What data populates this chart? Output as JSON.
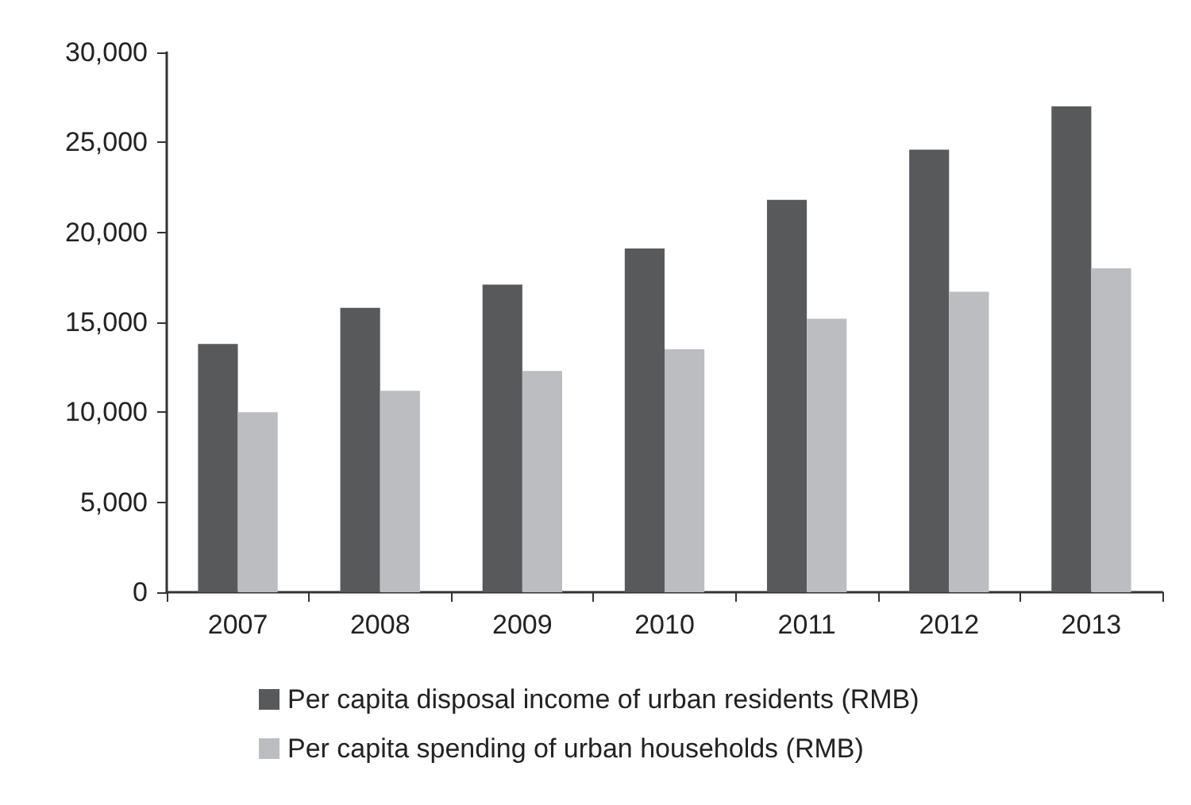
{
  "chart_data": {
    "type": "bar",
    "categories": [
      "2007",
      "2008",
      "2009",
      "2010",
      "2011",
      "2012",
      "2013"
    ],
    "series": [
      {
        "name": "Per capita disposal income of urban residents (RMB)",
        "color": "#58595b",
        "values": [
          13800,
          15800,
          17100,
          19100,
          21800,
          24600,
          27000
        ]
      },
      {
        "name": "Per capita spending of urban households (RMB)",
        "color": "#bcbdc0",
        "values": [
          10000,
          11200,
          12300,
          13500,
          15200,
          16700,
          18000
        ]
      }
    ],
    "ylim": [
      0,
      30000
    ],
    "yticks": [
      0,
      {
        "value": 5000,
        "label": "5,000"
      },
      {
        "value": 10000,
        "label": "10,000"
      },
      {
        "value": 15000,
        "label": "15,000"
      },
      {
        "value": 20000,
        "label": "20,000"
      },
      {
        "value": 25000,
        "label": "25,000"
      },
      {
        "value": 30000,
        "label": "30,000"
      }
    ],
    "grid": false,
    "legend": "bottom"
  }
}
